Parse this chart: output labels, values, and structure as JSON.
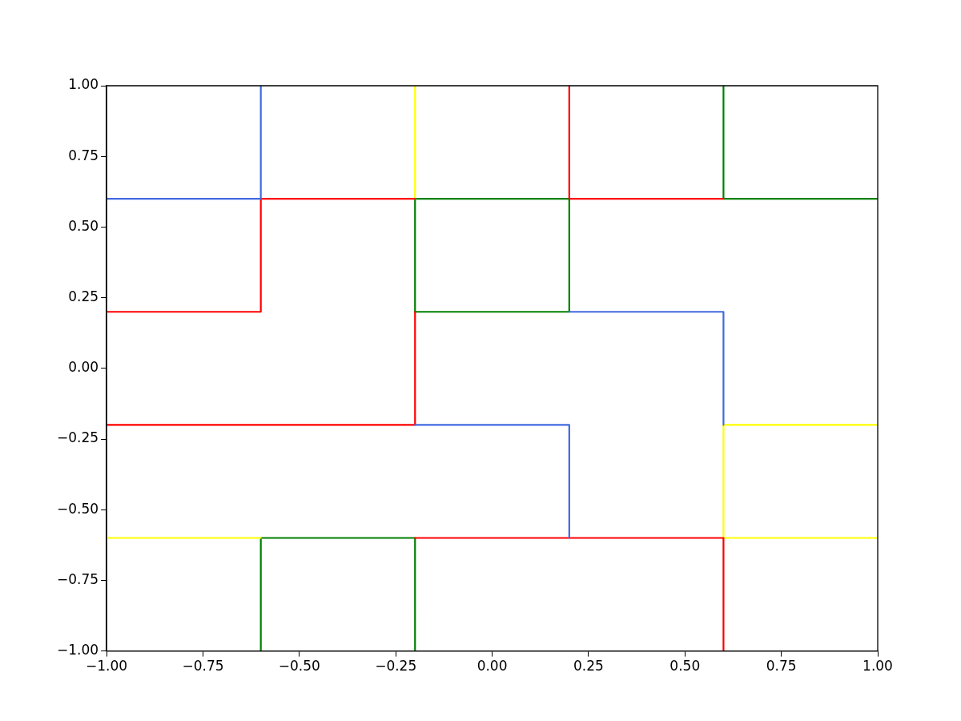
{
  "chart_data": {
    "type": "line",
    "grid": false,
    "marker": "none",
    "line_style": "solid",
    "xlim": [
      -1,
      1
    ],
    "ylim": [
      -1,
      1
    ],
    "xticks": [
      {
        "value": -1,
        "label": "−1.00"
      },
      {
        "value": -0.75,
        "label": "−0.75"
      },
      {
        "value": -0.5,
        "label": "−0.50"
      },
      {
        "value": -0.25,
        "label": "−0.25"
      },
      {
        "value": 0,
        "label": "0.00"
      },
      {
        "value": 0.25,
        "label": "0.25"
      },
      {
        "value": 0.5,
        "label": "0.50"
      },
      {
        "value": 0.75,
        "label": "0.75"
      },
      {
        "value": 1,
        "label": "1.00"
      }
    ],
    "yticks": [
      {
        "value": -1,
        "label": "−1.00"
      },
      {
        "value": -0.75,
        "label": "−0.75"
      },
      {
        "value": -0.5,
        "label": "−0.50"
      },
      {
        "value": -0.25,
        "label": "−0.25"
      },
      {
        "value": 0,
        "label": "0.00"
      },
      {
        "value": 0.25,
        "label": "0.25"
      },
      {
        "value": 0.5,
        "label": "0.50"
      },
      {
        "value": 0.75,
        "label": "0.75"
      },
      {
        "value": 1,
        "label": "1.00"
      }
    ],
    "series": [
      {
        "color": "#4169e1",
        "x": [
          -1,
          -0.6,
          -0.6
        ],
        "values": [
          0.6,
          0.6,
          1
        ]
      },
      {
        "color": "#4169e1",
        "x": [
          -0.2,
          0.2,
          0.2
        ],
        "values": [
          -0.2,
          -0.2,
          -0.6
        ]
      },
      {
        "color": "#4169e1",
        "x": [
          0.2,
          0.6,
          0.6
        ],
        "values": [
          0.2,
          0.2,
          -0.2
        ]
      },
      {
        "color": "#ff0000",
        "x": [
          -1,
          -0.6,
          -0.6,
          -0.2
        ],
        "values": [
          0.2,
          0.2,
          0.6,
          0.6
        ]
      },
      {
        "color": "#ff0000",
        "x": [
          -1,
          -0.2,
          -0.2
        ],
        "values": [
          -0.2,
          -0.2,
          0.2
        ]
      },
      {
        "color": "#ff0000",
        "x": [
          0.2,
          0.2,
          0.6
        ],
        "values": [
          1,
          0.6,
          0.6
        ]
      },
      {
        "color": "#ff0000",
        "x": [
          -0.2,
          0.6,
          0.6
        ],
        "values": [
          -0.6,
          -0.6,
          -1
        ]
      },
      {
        "color": "#ffff00",
        "x": [
          -0.2,
          -0.2
        ],
        "values": [
          1,
          0.6
        ]
      },
      {
        "color": "#ffff00",
        "x": [
          -1,
          -0.6
        ],
        "values": [
          -0.6,
          -0.6
        ]
      },
      {
        "color": "#ffff00",
        "x": [
          1,
          0.6,
          0.6,
          1
        ],
        "values": [
          -0.2,
          -0.2,
          -0.6,
          -0.6
        ]
      },
      {
        "color": "#008000",
        "x": [
          0.6,
          0.6,
          1
        ],
        "values": [
          1,
          0.6,
          0.6
        ]
      },
      {
        "color": "#008000",
        "x": [
          -0.2,
          -0.2,
          0.2
        ],
        "values": [
          0.2,
          0.6,
          0.6
        ]
      },
      {
        "color": "#008000",
        "x": [
          -0.2,
          0.2,
          0.2
        ],
        "values": [
          0.2,
          0.2,
          0.6
        ]
      },
      {
        "color": "#008000",
        "x": [
          -0.6,
          -0.6,
          -0.2,
          -0.2
        ],
        "values": [
          -1,
          -0.6,
          -0.6,
          -1
        ]
      }
    ]
  }
}
